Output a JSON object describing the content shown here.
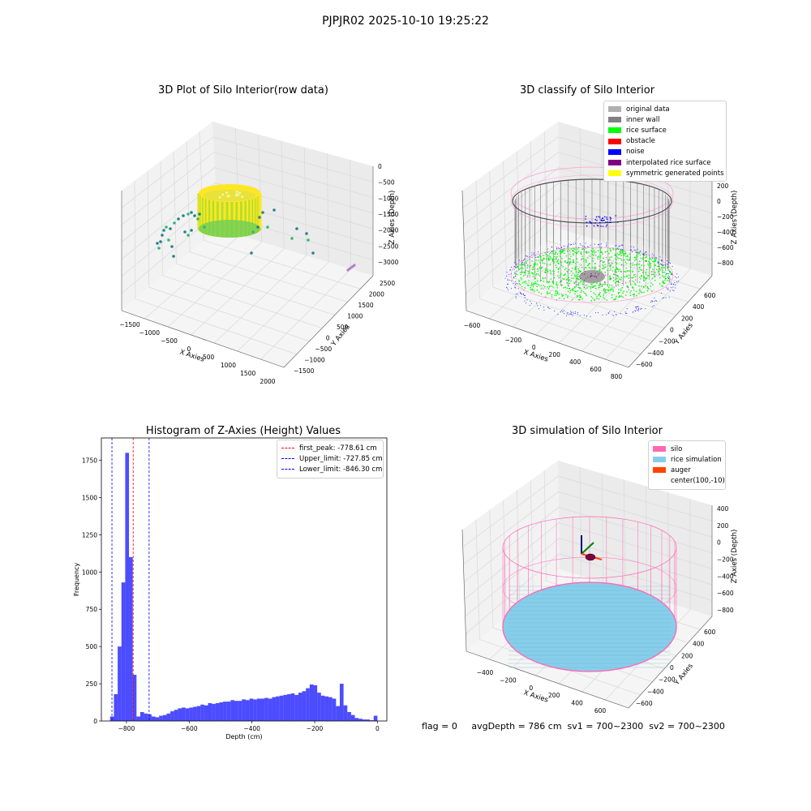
{
  "figure": {
    "suptitle": "PJPJR02 2025-10-10 19:25:22",
    "footer_text": "flag = 0     avgDepth = 786 cm  sv1 = 700~2300  sv2 = 700~2300"
  },
  "chart_data": [
    {
      "type": "scatter",
      "title": "3D Plot of Silo Interior(row data)",
      "xlabel": "X Axies",
      "ylabel": "Y Axies",
      "zlabel": "Z Axies (Depth)",
      "x_ticks": [
        "−1500",
        "−1000",
        "−500",
        "0",
        "500",
        "1000",
        "1500",
        "2000"
      ],
      "y_ticks": [
        "−1500",
        "−1000",
        "−500",
        "0",
        "500",
        "1000",
        "1500",
        "2000",
        "2500"
      ],
      "z_ticks": [
        "0",
        "−500",
        "−1000",
        "−1500",
        "−2000",
        "−2500",
        "−3000"
      ],
      "xlim": [
        -1500,
        2000
      ],
      "ylim": [
        -1500,
        2500
      ],
      "zlim": [
        -3000,
        0
      ],
      "colormap": [
        "#26828e",
        "#35b779",
        "#6ece58",
        "#b5de2b",
        "#fde725"
      ]
    },
    {
      "type": "scatter",
      "title": "3D classify of Silo Interior",
      "xlabel": "X Axies",
      "ylabel": "Y Axies",
      "zlabel": "Z Axies (Depth)",
      "x_ticks": [
        "−600",
        "−400",
        "−200",
        "0",
        "200",
        "400",
        "600",
        "800"
      ],
      "y_ticks": [
        "−600",
        "−400",
        "−200",
        "0",
        "200",
        "400",
        "600"
      ],
      "z_ticks": [
        "200",
        "0",
        "−200",
        "−400",
        "−600",
        "−800"
      ],
      "xlim": [
        -600,
        800
      ],
      "ylim": [
        -600,
        600
      ],
      "zlim": [
        -800,
        200
      ],
      "legend": [
        {
          "label": "original data",
          "color": "#b0b0b0"
        },
        {
          "label": "inner wall",
          "color": "#808080"
        },
        {
          "label": "rice surface",
          "color": "#00ff00"
        },
        {
          "label": "obstacle",
          "color": "#ff0000"
        },
        {
          "label": "noise",
          "color": "#0000ff"
        },
        {
          "label": "interpolated rice surface",
          "color": "#800080"
        },
        {
          "label": "symmetric generated points",
          "color": "#ffff00"
        }
      ]
    },
    {
      "type": "bar",
      "title": "Histogram of Z-Axies (Height) Values",
      "xlabel": "Depth (cm)",
      "ylabel": "Frequency",
      "xlim": [
        -880,
        30
      ],
      "ylim": [
        0,
        1900
      ],
      "x_ticks": [
        -800,
        -600,
        -400,
        -200,
        0
      ],
      "x_tick_labels": [
        "−800",
        "−600",
        "−400",
        "−200",
        "0"
      ],
      "y_ticks": [
        0,
        250,
        500,
        750,
        1000,
        1250,
        1500,
        1750
      ],
      "bar_color": "#0000ff",
      "bin_width": 12,
      "bins_start": [
        -852,
        -840,
        -828,
        -816,
        -804,
        -792,
        -780,
        -768,
        -756,
        -744,
        -732,
        -720,
        -708,
        -696,
        -684,
        -672,
        -660,
        -648,
        -636,
        -624,
        -612,
        -600,
        -588,
        -576,
        -564,
        -552,
        -540,
        -528,
        -516,
        -504,
        -492,
        -480,
        -468,
        -456,
        -444,
        -432,
        -420,
        -408,
        -396,
        -384,
        -372,
        -360,
        -348,
        -336,
        -324,
        -312,
        -300,
        -288,
        -276,
        -264,
        -252,
        -240,
        -228,
        -216,
        -204,
        -192,
        -180,
        -168,
        -156,
        -144,
        -132,
        -120,
        -108,
        -96,
        -84,
        -72,
        -60,
        -48,
        -36,
        -24,
        -12
      ],
      "counts": [
        30,
        180,
        500,
        930,
        1800,
        1100,
        310,
        30,
        60,
        50,
        45,
        30,
        25,
        35,
        40,
        50,
        65,
        75,
        85,
        90,
        85,
        90,
        95,
        100,
        110,
        105,
        120,
        115,
        120,
        125,
        130,
        130,
        140,
        135,
        135,
        145,
        140,
        150,
        145,
        150,
        150,
        155,
        150,
        160,
        165,
        170,
        175,
        180,
        185,
        175,
        190,
        200,
        220,
        245,
        240,
        190,
        170,
        165,
        160,
        150,
        100,
        250,
        105,
        60,
        40,
        20,
        15,
        10,
        10,
        5,
        35
      ],
      "lines": [
        {
          "label": "first_peak: -778.61 cm",
          "x": -778.61,
          "color": "#ff0000"
        },
        {
          "label": "Upper_limit: -727.85 cm",
          "x": -727.85,
          "color": "#0000ff"
        },
        {
          "label": "Lower_limit: -846.30 cm",
          "x": -846.3,
          "color": "#0000ff"
        }
      ]
    },
    {
      "type": "scatter",
      "title": "3D simulation of Silo Interior",
      "xlabel": "X Axies",
      "ylabel": "Y Axies",
      "zlabel": "Z Axies (Depth)",
      "x_ticks": [
        "−400",
        "−200",
        "0",
        "200",
        "400",
        "600"
      ],
      "y_ticks": [
        "−600",
        "−400",
        "−200",
        "0",
        "200",
        "400",
        "600"
      ],
      "z_ticks": [
        "400",
        "200",
        "0",
        "−200",
        "−400",
        "−600",
        "−800"
      ],
      "xlim": [
        -400,
        600
      ],
      "ylim": [
        -600,
        600
      ],
      "zlim": [
        -800,
        400
      ],
      "legend": [
        {
          "label": "silo",
          "color": "#ff69b4"
        },
        {
          "label": "rice simulation",
          "color": "#87ceeb"
        },
        {
          "label": "auger",
          "color": "#ff4500"
        },
        {
          "label": "center(100,-10)",
          "color": ""
        }
      ],
      "avg_depth": 786
    }
  ]
}
